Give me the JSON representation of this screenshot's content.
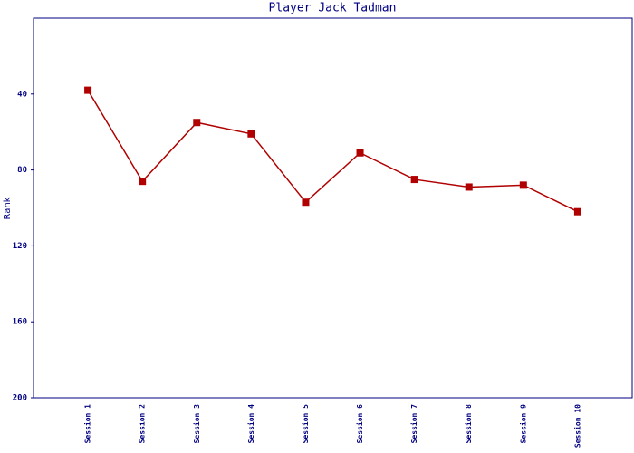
{
  "chart_data": {
    "type": "line",
    "title": "Player Jack Tadman",
    "y_label": "Rank",
    "categories": [
      "Session 1",
      "Session 2",
      "Session 3",
      "Session 4",
      "Session 5",
      "Session 6",
      "Session 7",
      "Session 8",
      "Session 9",
      "Session 10"
    ],
    "series": [
      {
        "name": "Rank",
        "color": "#b00000",
        "values": [
          38,
          86,
          55,
          61,
          97,
          71,
          85,
          89,
          88,
          102
        ]
      }
    ],
    "ylim": [
      0,
      200
    ],
    "y_inverted": true,
    "yticks": [
      40,
      80,
      120,
      160,
      200
    ],
    "grid": false
  }
}
